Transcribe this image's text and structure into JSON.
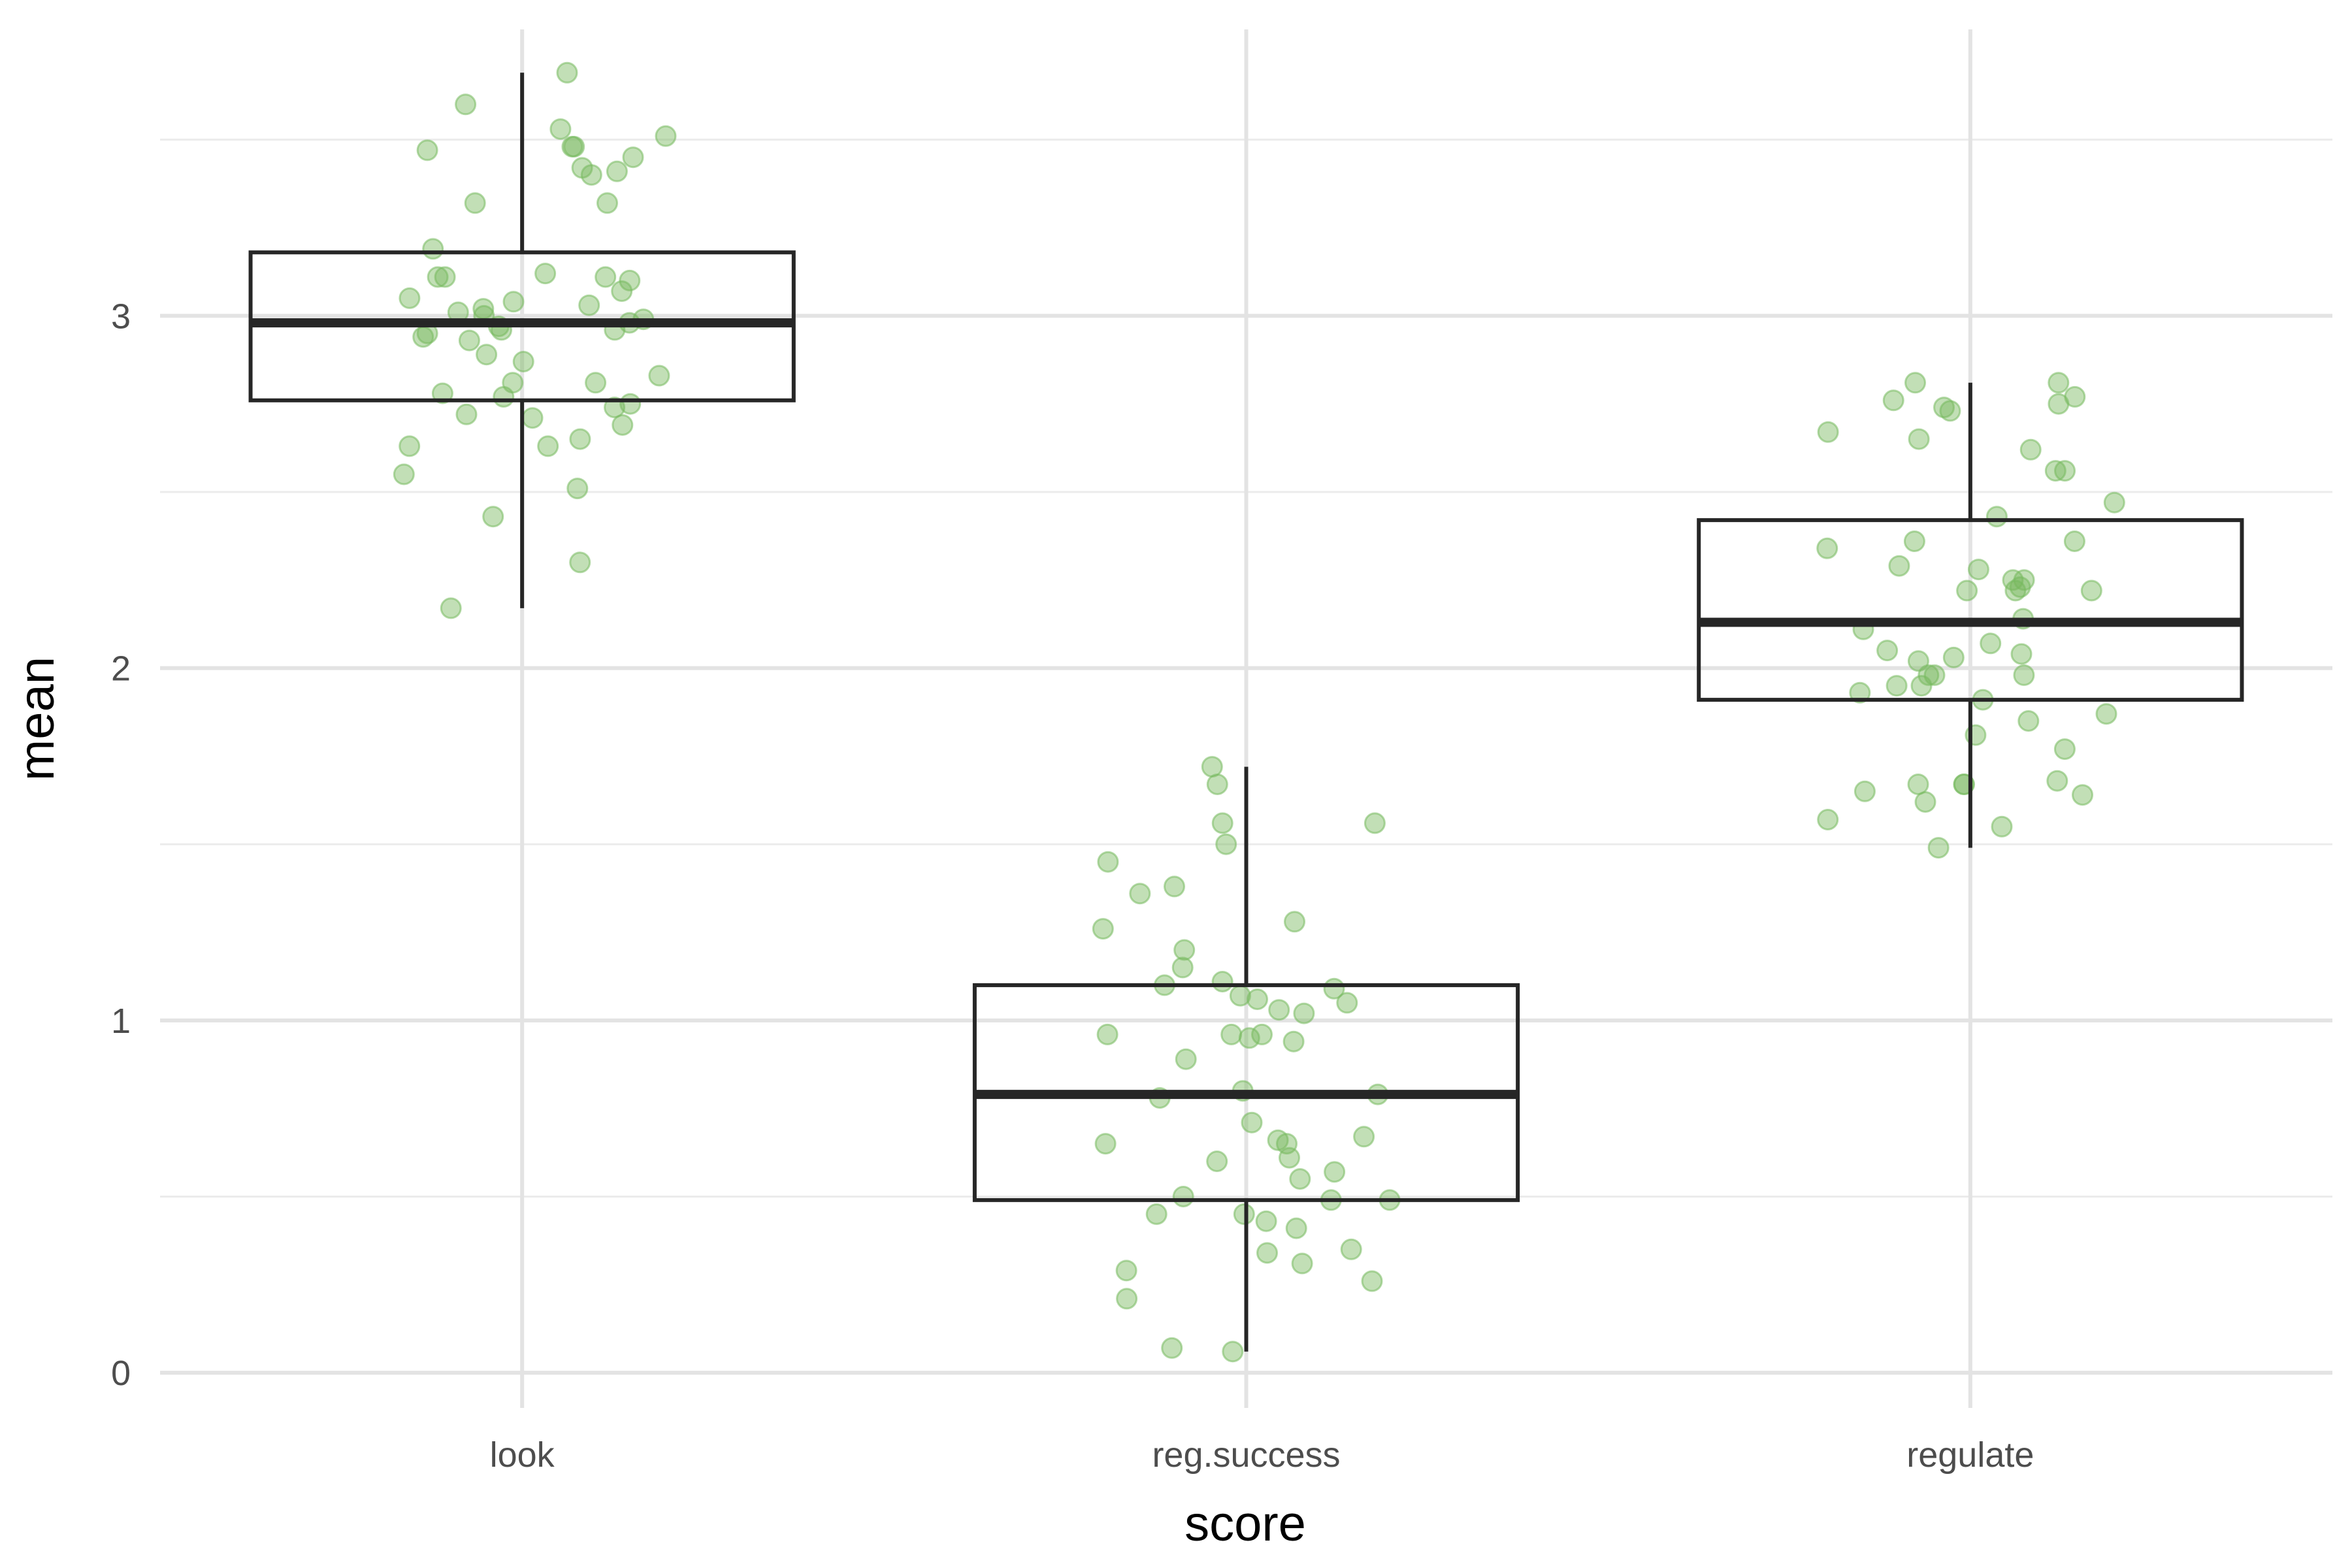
{
  "chart_data": {
    "type": "boxplot",
    "xlabel": "score",
    "ylabel": "mean",
    "categories": [
      "look",
      "reg.success",
      "regulate"
    ],
    "ylim": [
      -0.1,
      3.85
    ],
    "yticks": [
      0,
      1,
      2,
      3
    ],
    "grid": true,
    "point_color": "#77b95e",
    "box_color": "#262626",
    "boxes": [
      {
        "category": "look",
        "lower_whisker": 2.17,
        "q1": 2.76,
        "median": 2.98,
        "q3": 3.18,
        "upper_whisker": 3.69
      },
      {
        "category": "reg.success",
        "lower_whisker": 0.06,
        "q1": 0.49,
        "median": 0.79,
        "q3": 1.1,
        "upper_whisker": 1.72
      },
      {
        "category": "regulate",
        "lower_whisker": 1.49,
        "q1": 1.91,
        "median": 2.13,
        "q3": 2.42,
        "upper_whisker": 2.81
      }
    ],
    "points": [
      {
        "category": "look",
        "values": [
          3.69,
          3.6,
          3.53,
          3.51,
          3.48,
          3.48,
          3.47,
          3.45,
          3.42,
          3.41,
          3.4,
          3.32,
          3.32,
          3.19,
          3.12,
          3.11,
          3.11,
          3.11,
          3.1,
          3.07,
          3.05,
          3.04,
          3.03,
          3.02,
          3.01,
          3.0,
          2.99,
          2.98,
          2.97,
          2.96,
          2.96,
          2.95,
          2.94,
          2.93,
          2.89,
          2.87,
          2.83,
          2.81,
          2.81,
          2.78,
          2.77,
          2.75,
          2.74,
          2.72,
          2.71,
          2.69,
          2.65,
          2.63,
          2.63,
          2.55,
          2.51,
          2.43,
          2.3,
          2.17
        ]
      },
      {
        "category": "reg.success",
        "values": [
          1.72,
          1.67,
          1.56,
          1.56,
          1.5,
          1.45,
          1.38,
          1.36,
          1.28,
          1.26,
          1.2,
          1.15,
          1.11,
          1.1,
          1.09,
          1.07,
          1.06,
          1.05,
          1.03,
          1.02,
          0.96,
          0.96,
          0.96,
          0.95,
          0.94,
          0.89,
          0.8,
          0.79,
          0.78,
          0.71,
          0.67,
          0.66,
          0.65,
          0.65,
          0.61,
          0.6,
          0.57,
          0.55,
          0.5,
          0.49,
          0.49,
          0.45,
          0.45,
          0.43,
          0.41,
          0.35,
          0.34,
          0.31,
          0.29,
          0.26,
          0.21,
          0.07,
          0.06
        ]
      },
      {
        "category": "regulate",
        "values": [
          2.81,
          2.81,
          2.77,
          2.76,
          2.75,
          2.74,
          2.73,
          2.67,
          2.65,
          2.62,
          2.56,
          2.56,
          2.47,
          2.43,
          2.36,
          2.36,
          2.34,
          2.29,
          2.28,
          2.25,
          2.25,
          2.23,
          2.22,
          2.22,
          2.22,
          2.14,
          2.11,
          2.07,
          2.05,
          2.04,
          2.03,
          2.02,
          1.98,
          1.98,
          1.98,
          1.95,
          1.95,
          1.93,
          1.91,
          1.87,
          1.85,
          1.81,
          1.77,
          1.68,
          1.67,
          1.67,
          1.67,
          1.65,
          1.64,
          1.62,
          1.57,
          1.55,
          1.49
        ]
      }
    ]
  }
}
